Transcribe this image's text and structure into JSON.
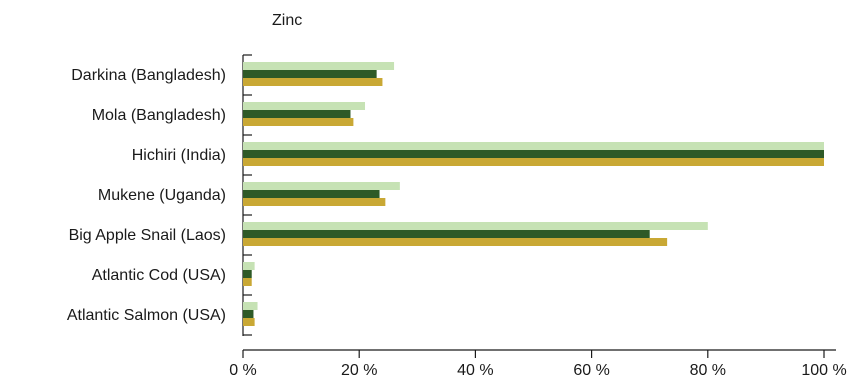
{
  "chart_data": {
    "type": "bar",
    "orientation": "horizontal",
    "title": "Zinc",
    "categories": [
      "Darkina (Bangladesh)",
      "Mola (Bangladesh)",
      "Hichiri (India)",
      "Mukene (Uganda)",
      "Big Apple Snail (Laos)",
      "Atlantic Cod (USA)",
      "Atlantic Salmon (USA)"
    ],
    "series": [
      {
        "color": "#c6e2b4",
        "values": [
          26,
          21,
          100,
          27,
          80,
          2,
          2.5
        ]
      },
      {
        "color": "#2e5a27",
        "values": [
          23,
          18.5,
          100,
          23.5,
          70,
          1.5,
          1.8
        ]
      },
      {
        "color": "#c9a834",
        "values": [
          24,
          19,
          100,
          24.5,
          73,
          1.5,
          2
        ]
      }
    ],
    "xlim": [
      0,
      100
    ],
    "x_ticks": [
      0,
      20,
      40,
      60,
      80,
      100
    ],
    "x_tick_labels": [
      "0 %",
      "20 %",
      "40 %",
      "60 %",
      "80 %",
      "100 %"
    ],
    "grid": false,
    "legend": "none"
  }
}
